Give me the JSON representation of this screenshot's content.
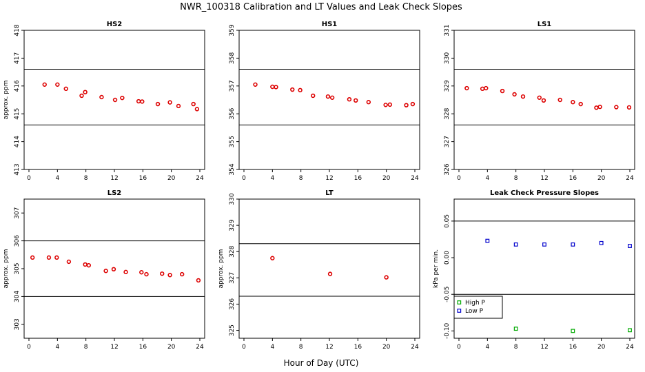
{
  "figure": {
    "title": "NWR_100318  Calibration and LT Values and Leak Check Slopes",
    "xlabel": "Hour of Day (UTC)",
    "colors": {
      "cal_points": "#dd0000",
      "high_p": "#00aa00",
      "low_p": "#0000cc",
      "axes": "#000000"
    }
  },
  "chart_data": [
    {
      "type": "scatter",
      "title": "HS2",
      "ylabel": "approx. ppm",
      "xlim": [
        0,
        24
      ],
      "ylim": [
        413,
        418
      ],
      "xticks": [
        0,
        4,
        8,
        12,
        16,
        20,
        24
      ],
      "xtick_labels": [
        "0",
        "4",
        "8",
        "12",
        "16",
        "20",
        "24"
      ],
      "yticks": [
        413,
        414,
        415,
        416,
        417,
        418
      ],
      "ytick_labels": [
        "413",
        "414",
        "415",
        "416",
        "417",
        "418"
      ],
      "hlines": [
        414.6,
        416.6
      ],
      "series": [
        {
          "x": [
            2.2,
            4.0,
            5.2,
            7.4,
            7.9,
            10.2,
            12.1,
            13.1,
            15.4,
            15.9,
            18.1,
            19.8,
            21.0,
            23.1,
            23.6
          ],
          "y": [
            416.05,
            416.05,
            415.9,
            415.65,
            415.78,
            415.6,
            415.5,
            415.57,
            415.45,
            415.44,
            415.35,
            415.41,
            415.28,
            415.35,
            415.17
          ]
        }
      ]
    },
    {
      "type": "scatter",
      "title": "HS1",
      "ylabel": "",
      "xlim": [
        0,
        24
      ],
      "ylim": [
        354,
        359
      ],
      "xticks": [
        0,
        4,
        8,
        12,
        16,
        20,
        24
      ],
      "xtick_labels": [
        "0",
        "4",
        "8",
        "12",
        "16",
        "20",
        "24"
      ],
      "yticks": [
        354,
        355,
        356,
        357,
        358,
        359
      ],
      "ytick_labels": [
        "354",
        "355",
        "356",
        "357",
        "358",
        "359"
      ],
      "hlines": [
        355.6,
        357.6
      ],
      "series": [
        {
          "x": [
            1.6,
            4.0,
            4.5,
            6.8,
            7.9,
            9.7,
            11.8,
            12.4,
            14.8,
            15.7,
            17.5,
            19.9,
            20.5,
            22.8,
            23.7
          ],
          "y": [
            357.05,
            356.97,
            356.96,
            356.87,
            356.85,
            356.65,
            356.62,
            356.58,
            356.52,
            356.48,
            356.42,
            356.32,
            356.33,
            356.31,
            356.35
          ]
        }
      ]
    },
    {
      "type": "scatter",
      "title": "LS1",
      "ylabel": "",
      "xlim": [
        0,
        24
      ],
      "ylim": [
        326,
        331
      ],
      "xticks": [
        0,
        4,
        8,
        12,
        16,
        20,
        24
      ],
      "xtick_labels": [
        "0",
        "4",
        "8",
        "12",
        "16",
        "20",
        "24"
      ],
      "yticks": [
        326,
        327,
        328,
        329,
        330,
        331
      ],
      "ytick_labels": [
        "326",
        "327",
        "328",
        "329",
        "330",
        "331"
      ],
      "hlines": [
        327.6,
        329.6
      ],
      "series": [
        {
          "x": [
            1.1,
            3.3,
            3.8,
            6.1,
            7.8,
            9.0,
            11.3,
            11.9,
            14.2,
            16.0,
            17.1,
            19.3,
            19.8,
            22.1,
            23.9
          ],
          "y": [
            328.92,
            328.9,
            328.92,
            328.82,
            328.7,
            328.62,
            328.58,
            328.48,
            328.5,
            328.42,
            328.35,
            328.22,
            328.25,
            328.24,
            328.23
          ]
        }
      ]
    },
    {
      "type": "scatter",
      "title": "LS2",
      "ylabel": "approx. ppm",
      "xlim": [
        0,
        24
      ],
      "ylim": [
        302.5,
        307.5
      ],
      "xticks": [
        0,
        4,
        8,
        12,
        16,
        20,
        24
      ],
      "xtick_labels": [
        "0",
        "4",
        "8",
        "12",
        "16",
        "20",
        "24"
      ],
      "yticks": [
        303,
        304,
        305,
        306,
        307
      ],
      "ytick_labels": [
        "303",
        "304",
        "305",
        "306",
        "307"
      ],
      "hlines": [
        304.0,
        306.0
      ],
      "series": [
        {
          "x": [
            0.5,
            2.8,
            3.9,
            5.6,
            7.9,
            8.4,
            10.8,
            11.9,
            13.6,
            15.8,
            16.5,
            18.7,
            19.8,
            21.5,
            23.8
          ],
          "y": [
            305.4,
            305.4,
            305.4,
            305.25,
            305.15,
            305.12,
            304.92,
            304.98,
            304.88,
            304.87,
            304.8,
            304.82,
            304.77,
            304.8,
            304.58
          ]
        }
      ]
    },
    {
      "type": "scatter",
      "title": "LT",
      "ylabel": "approx. ppm",
      "xlim": [
        0,
        24
      ],
      "ylim": [
        324.7,
        330
      ],
      "xticks": [
        0,
        4,
        8,
        12,
        16,
        20,
        24
      ],
      "xtick_labels": [
        "0",
        "4",
        "8",
        "12",
        "16",
        "20",
        "24"
      ],
      "yticks": [
        325,
        326,
        327,
        328,
        329,
        330
      ],
      "ytick_labels": [
        "325",
        "326",
        "327",
        "328",
        "329",
        "330"
      ],
      "hlines": [
        326.3,
        328.3
      ],
      "series": [
        {
          "x": [
            4.0,
            12.1,
            20.0
          ],
          "y": [
            327.75,
            327.15,
            327.02
          ]
        }
      ]
    },
    {
      "type": "scatter",
      "title": "Leak Check Pressure Slopes",
      "ylabel": "kPa per min.",
      "xlim": [
        0,
        24
      ],
      "ylim": [
        -0.11,
        0.08
      ],
      "xticks": [
        0,
        4,
        8,
        12,
        16,
        20,
        24
      ],
      "xtick_labels": [
        "0",
        "4",
        "8",
        "12",
        "16",
        "20",
        "24"
      ],
      "yticks": [
        -0.1,
        -0.05,
        0.0,
        0.05
      ],
      "ytick_labels": [
        "-0.10",
        "-0.05",
        "0.00",
        "0.05"
      ],
      "hlines": [
        -0.05,
        0.05
      ],
      "legend": {
        "position": "left",
        "entries": [
          "High P",
          "Low P"
        ]
      },
      "series": [
        {
          "name": "High P",
          "color": "#00aa00",
          "x": [
            8.0,
            16.0,
            24.0
          ],
          "y": [
            -0.097,
            -0.1,
            -0.099
          ]
        },
        {
          "name": "Low P",
          "color": "#0000cc",
          "x": [
            4.0,
            8.0,
            12.0,
            16.0,
            20.0,
            24.0
          ],
          "y": [
            0.023,
            0.018,
            0.018,
            0.018,
            0.02,
            0.016
          ]
        }
      ]
    }
  ]
}
